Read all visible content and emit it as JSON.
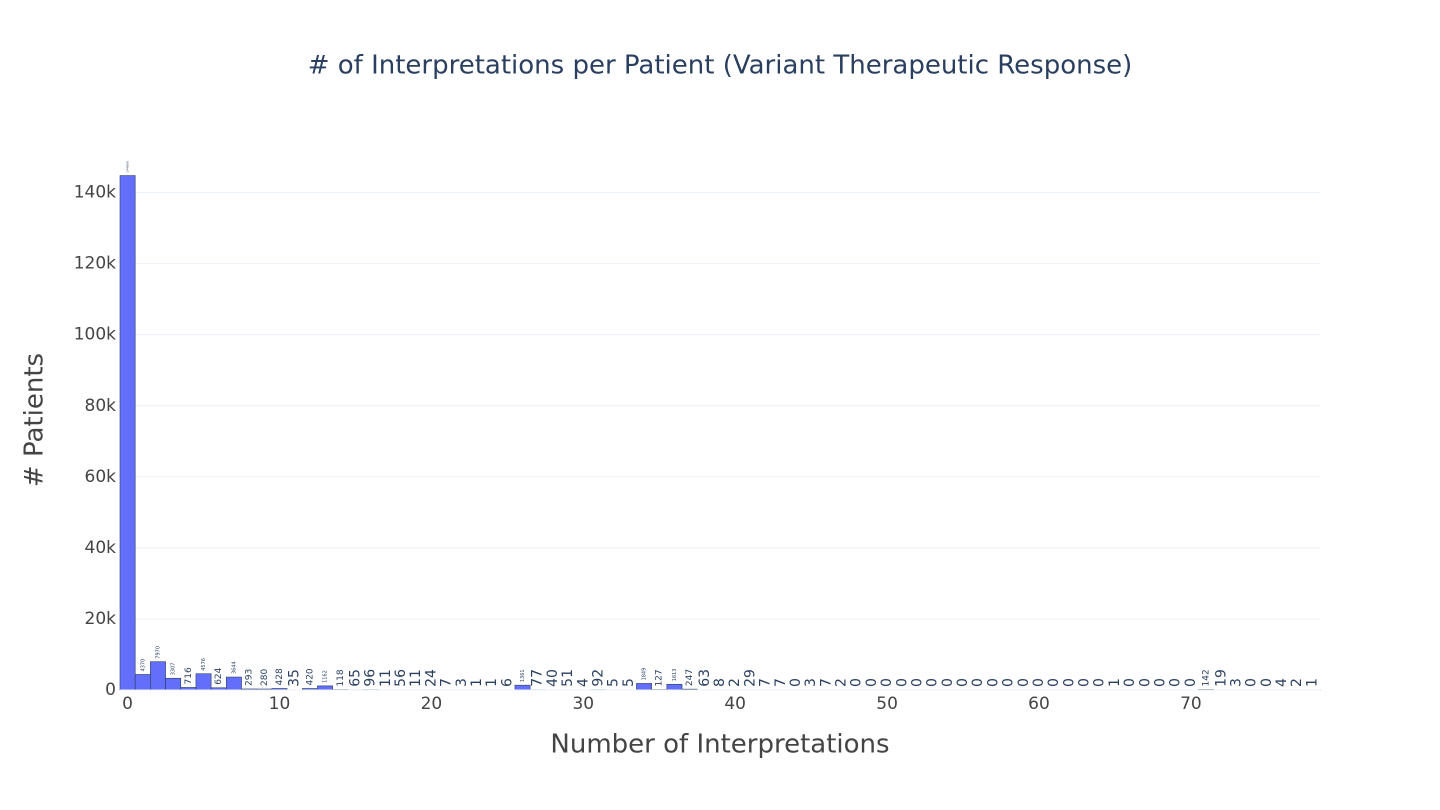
{
  "chart_data": {
    "type": "histogram",
    "title": "# of Interpretations per Patient (Variant Therapeutic Response)",
    "x_label": "Number of Interpretations",
    "y_label": "# Patients",
    "bins": [
      -0.5,
      0.5,
      1.5,
      2.5,
      3.5,
      4.5,
      5.5,
      6.5,
      7.5,
      8.5,
      9.5,
      10.5,
      11.5,
      12.5,
      13.5,
      14.5,
      15.5,
      16.5,
      17.5,
      18.5,
      19.5,
      20.5,
      21.5,
      22.5,
      23.5,
      24.5,
      25.5,
      26.5,
      27.5,
      28.5,
      29.5,
      30.5,
      31.5,
      32.5,
      33.5,
      34.5,
      35.5,
      36.5,
      37.5,
      38.5,
      39.5,
      40.5,
      41.5,
      42.5,
      43.5,
      44.5,
      45.5,
      46.5,
      47.5,
      48.5,
      49.5,
      50.5,
      51.5,
      52.5,
      53.5,
      54.5,
      55.5,
      56.5,
      57.5,
      58.5,
      59.5,
      60.5,
      61.5,
      62.5,
      63.5,
      64.5,
      65.5,
      66.5,
      67.5,
      68.5,
      69.5,
      70.5,
      71.5,
      72.5,
      73.5,
      74.5,
      75.5,
      76.5,
      77.5,
      78.5
    ],
    "values": [
      144800,
      4370,
      7970,
      3307,
      716,
      4576,
      624,
      3644,
      293,
      280,
      428,
      35,
      420,
      1162,
      118,
      65,
      96,
      11,
      56,
      11,
      24,
      7,
      3,
      1,
      1,
      6,
      1361,
      77,
      40,
      51,
      4,
      92,
      5,
      5,
      1849,
      127,
      1613,
      247,
      63,
      8,
      2,
      29,
      7,
      7,
      0,
      3,
      7,
      2,
      0,
      0,
      0,
      0,
      0,
      0,
      0,
      0,
      0,
      0,
      0,
      0,
      0,
      0,
      0,
      0,
      0,
      1,
      0,
      0,
      0,
      0,
      0,
      142,
      19,
      3,
      0,
      0,
      4,
      2,
      1
    ],
    "color": "#636efa",
    "xlim": [
      -0.5,
      78.5
    ],
    "ylim": [
      0,
      152000
    ],
    "xticks": [
      0,
      10,
      20,
      30,
      40,
      50,
      60,
      70
    ],
    "yticks": [
      0,
      {
        "value": 20000,
        "label": "20k"
      },
      {
        "value": 40000,
        "label": "40k"
      },
      {
        "value": 60000,
        "label": "60k"
      },
      {
        "value": 80000,
        "label": "80k"
      },
      {
        "value": 100000,
        "label": "100k"
      },
      {
        "value": 120000,
        "label": "120k"
      },
      {
        "value": 140000,
        "label": "140k"
      }
    ],
    "grid": true
  }
}
